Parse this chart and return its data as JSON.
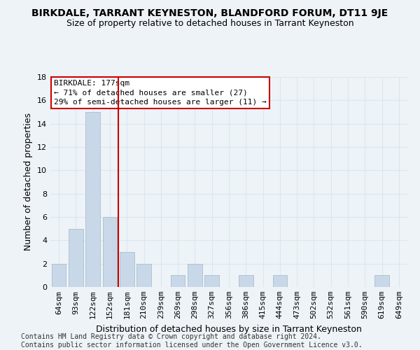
{
  "title": "BIRKDALE, TARRANT KEYNESTON, BLANDFORD FORUM, DT11 9JE",
  "subtitle": "Size of property relative to detached houses in Tarrant Keyneston",
  "xlabel": "Distribution of detached houses by size in Tarrant Keyneston",
  "ylabel": "Number of detached properties",
  "footer": "Contains HM Land Registry data © Crown copyright and database right 2024.\nContains public sector information licensed under the Open Government Licence v3.0.",
  "categories": [
    "64sqm",
    "93sqm",
    "122sqm",
    "152sqm",
    "181sqm",
    "210sqm",
    "239sqm",
    "269sqm",
    "298sqm",
    "327sqm",
    "356sqm",
    "386sqm",
    "415sqm",
    "444sqm",
    "473sqm",
    "502sqm",
    "532sqm",
    "561sqm",
    "590sqm",
    "619sqm",
    "649sqm"
  ],
  "values": [
    2,
    5,
    15,
    6,
    3,
    2,
    0,
    1,
    2,
    1,
    0,
    1,
    0,
    1,
    0,
    0,
    0,
    0,
    0,
    1,
    0
  ],
  "bar_color": "#c8d8e8",
  "bar_edge_color": "#a8bece",
  "vline_color": "#cc0000",
  "annotation_box_text": "BIRKDALE: 177sqm\n← 71% of detached houses are smaller (27)\n29% of semi-detached houses are larger (11) →",
  "annotation_box_color": "#cc0000",
  "annotation_box_facecolor": "#ffffff",
  "ylim": [
    0,
    18
  ],
  "yticks": [
    0,
    2,
    4,
    6,
    8,
    10,
    12,
    14,
    16,
    18
  ],
  "grid_color": "#d8e8f0",
  "background_color": "#eef3f8",
  "title_fontsize": 10,
  "subtitle_fontsize": 9,
  "axis_label_fontsize": 9,
  "tick_fontsize": 8,
  "footer_fontsize": 7,
  "annot_fontsize": 8
}
